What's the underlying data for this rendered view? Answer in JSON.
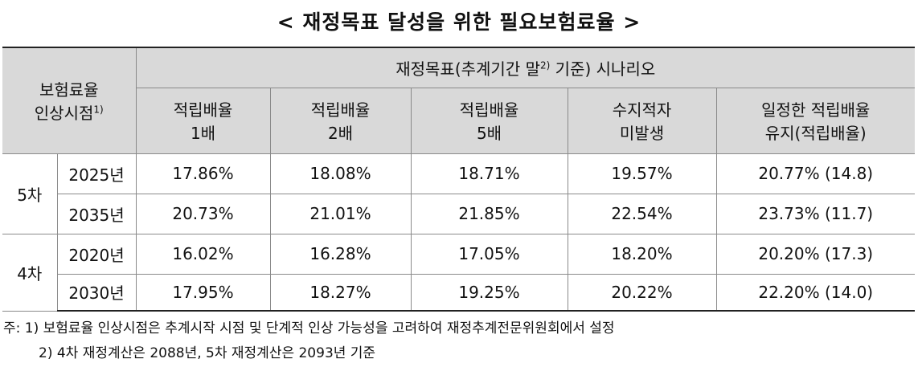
{
  "title": "< 재정목표 달성을 위한 필요보험료율 >",
  "table": {
    "corner": {
      "lines": [
        "보험료율",
        "인상시점"
      ],
      "sup": "1)"
    },
    "group_header": {
      "before": "재정목표(추계기간 말",
      "sup": "2)",
      "after": " 기준) 시나리오"
    },
    "columns": [
      [
        "적립배율",
        "1배"
      ],
      [
        "적립배율",
        "2배"
      ],
      [
        "적립배율",
        "5배"
      ],
      [
        "수지적자",
        "미발생"
      ],
      [
        "일정한 적립배율",
        "유지(적립배율)"
      ]
    ],
    "groups": [
      {
        "label": "5차",
        "rows": [
          {
            "year": "2025년",
            "cells": [
              "17.86%",
              "18.08%",
              "18.71%",
              "19.57%",
              "20.77% (14.8)"
            ]
          },
          {
            "year": "2035년",
            "cells": [
              "20.73%",
              "21.01%",
              "21.85%",
              "22.54%",
              "23.73% (11.7)"
            ]
          }
        ]
      },
      {
        "label": "4차",
        "rows": [
          {
            "year": "2020년",
            "cells": [
              "16.02%",
              "16.28%",
              "17.05%",
              "18.20%",
              "20.20% (17.3)"
            ]
          },
          {
            "year": "2030년",
            "cells": [
              "17.95%",
              "18.27%",
              "19.25%",
              "20.22%",
              "22.20% (14.0)"
            ]
          }
        ]
      }
    ]
  },
  "notes": {
    "prefix": "주:",
    "items": [
      "1) 보험료율 인상시점은 추계시작 시점 및 단계적 인상 가능성을 고려하여 재정추계전문위원회에서 설정",
      "2) 4차 재정계산은 2088년, 5차 재정계산은 2093년 기준"
    ]
  }
}
